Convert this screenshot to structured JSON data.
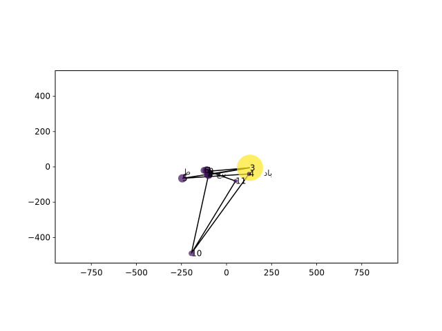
{
  "chart_data": {
    "type": "scatter",
    "title": "",
    "xlabel": "",
    "ylabel": "",
    "xlim": [
      -950,
      950
    ],
    "ylim": [
      -545,
      545
    ],
    "xticks": [
      -750,
      -500,
      -250,
      0,
      250,
      500,
      750
    ],
    "yticks": [
      -400,
      -200,
      0,
      200,
      400
    ],
    "xtick_labels": [
      "−750",
      "−500",
      "−250",
      "0",
      "250",
      "500",
      "750"
    ],
    "ytick_labels": [
      "−400",
      "−200",
      "0",
      "200",
      "400"
    ],
    "grid": false,
    "colormap": "viridis",
    "point_alpha": 0.7,
    "path_color": "#000000",
    "points": [
      {
        "id": "1",
        "label": "1",
        "x": -110,
        "y": -20,
        "size": 6,
        "shade": 0.05
      },
      {
        "id": "2",
        "label": "2",
        "x": -105,
        "y": -35,
        "size": 5,
        "shade": 0.05
      },
      {
        "id": "3",
        "label": "3",
        "x": 130,
        "y": -5,
        "size": 19,
        "shade": 1.0
      },
      {
        "id": "4",
        "label": "4",
        "x": 125,
        "y": -40,
        "size": 3,
        "shade": 0.05
      },
      {
        "id": "5",
        "label": "5",
        "x": -245,
        "y": -65,
        "size": 6,
        "shade": 0.05
      },
      {
        "id": "6",
        "label": "6",
        "x": -125,
        "y": -20,
        "size": 5,
        "shade": 0.05
      },
      {
        "id": "7",
        "label": "7",
        "x": -100,
        "y": -45,
        "size": 6,
        "shade": 0.05
      },
      {
        "id": "8",
        "label": "8",
        "x": -105,
        "y": -45,
        "size": 5,
        "shade": 0.05
      },
      {
        "id": "9",
        "label": "9",
        "x": -100,
        "y": -25,
        "size": 4,
        "shade": 0.05
      },
      {
        "id": "10",
        "label": "10",
        "x": -195,
        "y": -490,
        "size": 4,
        "shade": 0.05
      },
      {
        "id": "11",
        "label": "11",
        "x": 50,
        "y": -80,
        "size": 3,
        "shade": 0.05
      }
    ],
    "path": [
      [
        130,
        -5
      ],
      [
        -245,
        -65
      ],
      [
        125,
        -40
      ],
      [
        -195,
        -490
      ],
      [
        -100,
        -45
      ],
      [
        130,
        -5
      ],
      [
        -100,
        -25
      ],
      [
        50,
        -80
      ],
      [
        -195,
        -490
      ]
    ],
    "annotations": [
      {
        "id": "arabic-1",
        "text": "باد",
        "x": 230,
        "y": -35
      },
      {
        "id": "arabic-2",
        "text": "بیچ",
        "x": -30,
        "y": -40
      },
      {
        "id": "arabic-3",
        "text": "ط",
        "x": -220,
        "y": -30
      }
    ]
  }
}
